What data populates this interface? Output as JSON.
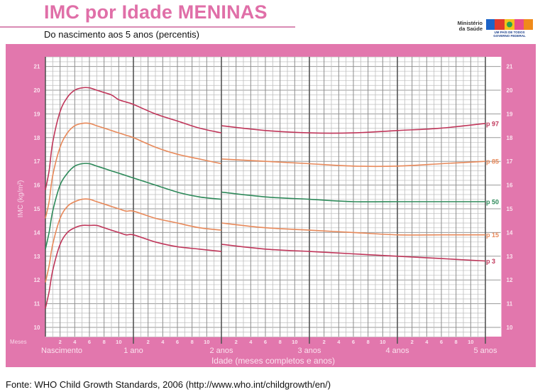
{
  "header": {
    "title": "IMC por Idade MENINAS",
    "subtitle": "Do nascimento aos 5 anos (percentis)"
  },
  "logo": {
    "ministry": "Ministério da Saúde",
    "brand": "BRASIL",
    "tagline1": "UM PAÍS DE TODOS",
    "tagline2": "GOVERNO FEDERAL"
  },
  "footer": {
    "source": "Fonte: WHO Child Growth Standards, 2006 (http://www.who.int/childgrowth/en/)"
  },
  "colors": {
    "frame": "#e277ad",
    "title": "#e06fa8",
    "p97": "#c0365a",
    "p85": "#e8895a",
    "p50": "#2e8a5a",
    "p15": "#e8895a",
    "p3": "#c0365a"
  },
  "chart_data": {
    "type": "line",
    "title": "IMC por Idade MENINAS",
    "subtitle": "Do nascimento aos 5 anos (percentis)",
    "xlabel": "Idade (meses completos e anos)",
    "ylabel": "IMC (kg/m²)",
    "x_unit_label": "Meses",
    "xlim": [
      0,
      60
    ],
    "ylim": [
      9.6,
      21.4
    ],
    "yticks": [
      10,
      11,
      12,
      13,
      14,
      15,
      16,
      17,
      18,
      19,
      20,
      21
    ],
    "x_year_labels": [
      "Nascimento",
      "1 ano",
      "2 anos",
      "3 anos",
      "4 anos",
      "5 anos"
    ],
    "x_month_ticks": [
      "2",
      "4",
      "6",
      "8",
      "10"
    ],
    "grid": true,
    "legend_position": "right, inline labels at curve ends",
    "x": [
      0,
      0.5,
      1,
      2,
      3,
      4,
      5,
      6,
      7,
      8,
      9,
      10,
      11,
      12,
      15,
      18,
      21,
      24,
      24,
      30,
      36,
      42,
      48,
      54,
      60
    ],
    "series": [
      {
        "name": "p 97",
        "values": [
          15.8,
          16.6,
          17.8,
          19.1,
          19.7,
          20.0,
          20.1,
          20.1,
          20.0,
          19.9,
          19.8,
          19.6,
          19.5,
          19.4,
          19.0,
          18.7,
          18.4,
          18.2,
          18.5,
          18.3,
          18.2,
          18.2,
          18.3,
          18.4,
          18.6
        ]
      },
      {
        "name": "p 85",
        "values": [
          14.6,
          15.3,
          16.4,
          17.6,
          18.2,
          18.5,
          18.6,
          18.6,
          18.5,
          18.4,
          18.3,
          18.2,
          18.1,
          18.0,
          17.6,
          17.3,
          17.1,
          16.9,
          17.1,
          17.0,
          16.9,
          16.8,
          16.8,
          16.9,
          17.0
        ]
      },
      {
        "name": "p 50",
        "values": [
          13.3,
          14.0,
          14.9,
          16.0,
          16.5,
          16.8,
          16.9,
          16.9,
          16.8,
          16.7,
          16.6,
          16.5,
          16.4,
          16.3,
          16.0,
          15.7,
          15.5,
          15.4,
          15.7,
          15.5,
          15.4,
          15.3,
          15.3,
          15.3,
          15.3
        ]
      },
      {
        "name": "p 15",
        "values": [
          11.9,
          12.6,
          13.5,
          14.6,
          15.1,
          15.3,
          15.4,
          15.4,
          15.3,
          15.2,
          15.1,
          15.0,
          14.9,
          14.9,
          14.6,
          14.4,
          14.2,
          14.1,
          14.4,
          14.2,
          14.1,
          14.0,
          13.9,
          13.9,
          13.9
        ]
      },
      {
        "name": "p 3",
        "values": [
          10.8,
          11.5,
          12.4,
          13.5,
          14.0,
          14.2,
          14.3,
          14.3,
          14.3,
          14.2,
          14.1,
          14.0,
          13.9,
          13.9,
          13.6,
          13.4,
          13.3,
          13.2,
          13.5,
          13.3,
          13.2,
          13.1,
          13.0,
          12.9,
          12.8
        ]
      }
    ]
  }
}
